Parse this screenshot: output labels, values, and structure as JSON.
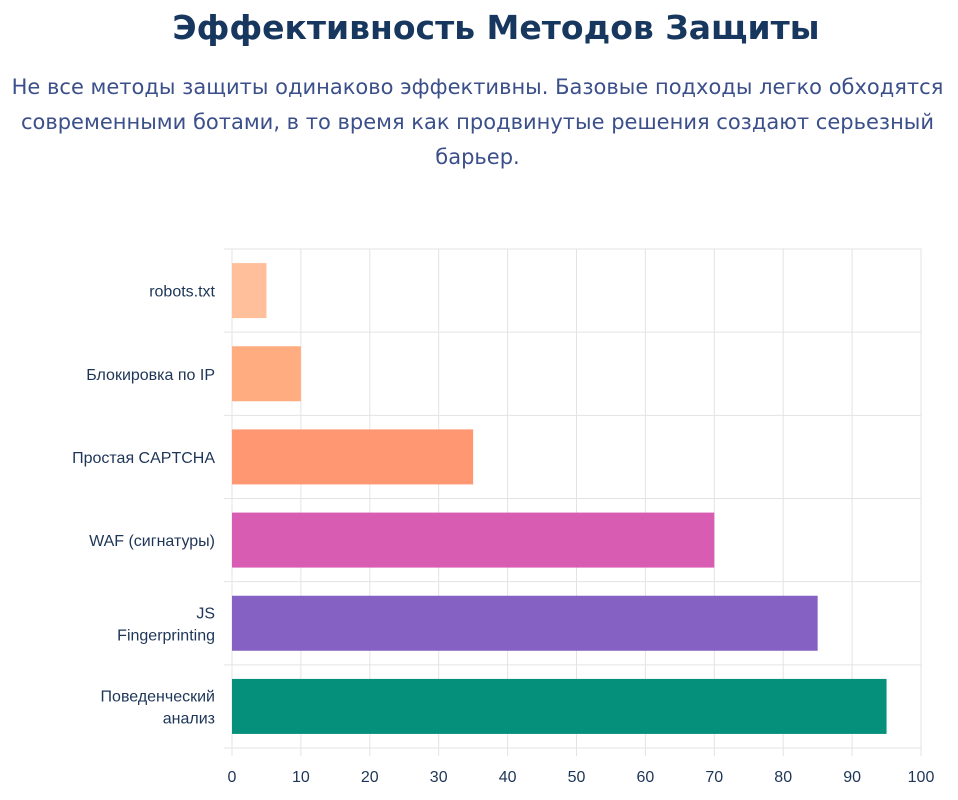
{
  "header": {
    "title": "Эффективность Методов Защиты",
    "subtitle_lines": [
      "Не все методы защиты одинаково эффективны. Базовые подходы легко обходятся",
      "современными ботами, в то время как продвинутые решения создают серьезный",
      "барьер."
    ]
  },
  "chart_data": {
    "type": "bar",
    "orientation": "horizontal",
    "categories": [
      [
        "robots.txt"
      ],
      [
        "Блокировка по IP"
      ],
      [
        "Простая CAPTCHA"
      ],
      [
        "WAF (сигнатуры)"
      ],
      [
        "JS",
        "Fingerprinting"
      ],
      [
        "Поведенческий",
        "анализ"
      ]
    ],
    "values": [
      5,
      10,
      35,
      70,
      85,
      95
    ],
    "colors": [
      "#ffbf9b",
      "#ffad80",
      "#ff9872",
      "#d75cb2",
      "#8461c2",
      "#04907a"
    ],
    "xlim": [
      0,
      100
    ],
    "xticks": [
      0,
      10,
      20,
      30,
      40,
      50,
      60,
      70,
      80,
      90,
      100
    ],
    "grid": true,
    "title": "",
    "xlabel": "",
    "ylabel": ""
  }
}
